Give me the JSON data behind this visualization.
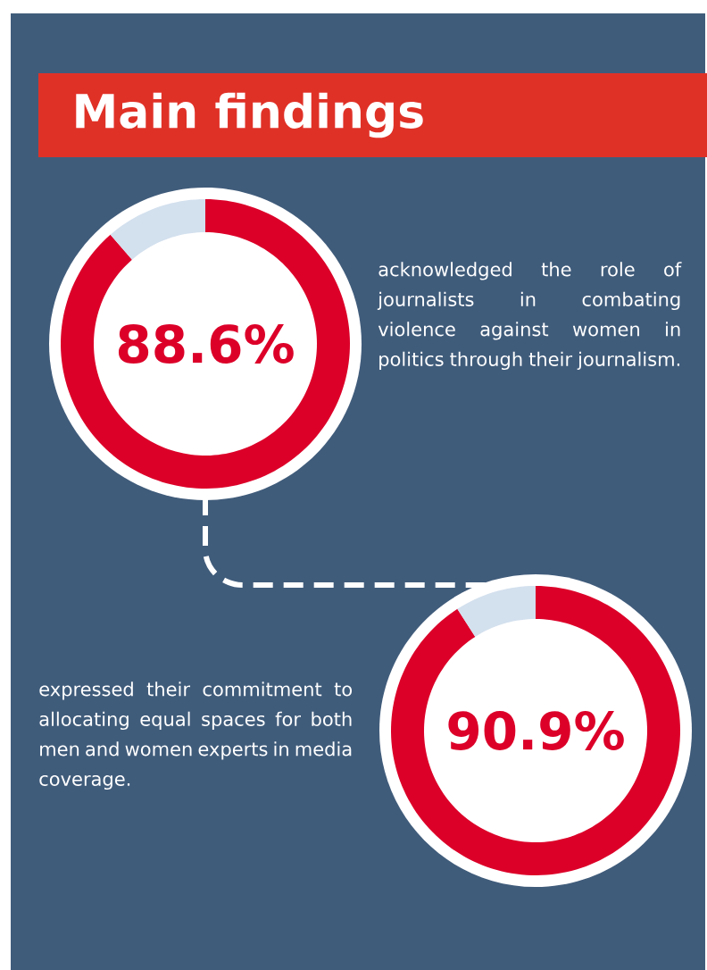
{
  "chart_data": [
    {
      "type": "donut",
      "title": "Main findings",
      "categories": [
        null,
        null
      ],
      "values": [
        88.6,
        11.4
      ],
      "colors": [
        "#dc0029",
        "#d3e0ee"
      ],
      "value_labels": [
        "88.6%",
        null
      ],
      "annotations": [
        "acknowledged the role of journalists in combating violence against women in politics through their journalism."
      ]
    },
    {
      "type": "donut",
      "categories": [
        null,
        null
      ],
      "values": [
        90.9,
        9.1
      ],
      "colors": [
        "#dc0029",
        "#d3e0ee"
      ],
      "value_labels": [
        "90.9%",
        null
      ],
      "annotations": [
        "expressed their commitment to allocating equal spaces for both men and women experts in media coverage."
      ]
    }
  ]
}
